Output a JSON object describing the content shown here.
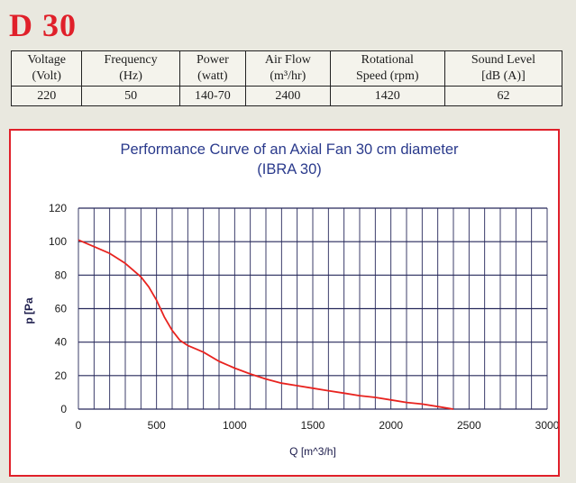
{
  "model": "D 30",
  "spec_table": {
    "headers": [
      {
        "line1": "Voltage",
        "line2": "(Volt)"
      },
      {
        "line1": "Frequency",
        "line2": "(Hz)"
      },
      {
        "line1": "Power",
        "line2": "(watt)"
      },
      {
        "line1": "Air Flow",
        "line2": "(m³/hr)"
      },
      {
        "line1": "Rotational",
        "line2": "Speed (rpm)"
      },
      {
        "line1": "Sound Level",
        "line2": "[dB (A)]"
      }
    ],
    "values": [
      "220",
      "50",
      "140-70",
      "2400",
      "1420",
      "62"
    ]
  },
  "chart_data": {
    "type": "line",
    "title": "Performance Curve of an Axial Fan 30 cm diameter",
    "subtitle": "(IBRA 30)",
    "xlabel": "Q [m^3/h]",
    "ylabel": "p [Pa",
    "xlim": [
      0,
      3000
    ],
    "ylim": [
      0,
      120
    ],
    "xticks": [
      "0",
      "500",
      "1000",
      "1500",
      "2000",
      "2500",
      "3000"
    ],
    "yticks": [
      "0",
      "20",
      "40",
      "60",
      "80",
      "100",
      "120"
    ],
    "grid": true,
    "series": [
      {
        "color": "#e8231f",
        "x": [
          0,
          100,
          200,
          300,
          400,
          450,
          500,
          550,
          600,
          650,
          700,
          750,
          800,
          900,
          1000,
          1100,
          1200,
          1300,
          1400,
          1500,
          1600,
          1700,
          1800,
          1900,
          2000,
          2100,
          2200,
          2300,
          2400
        ],
        "y": [
          101,
          97,
          93,
          87,
          79,
          73,
          65,
          55,
          47,
          41,
          38,
          36,
          34,
          28.5,
          24.5,
          21,
          18,
          15.5,
          14,
          12.5,
          11,
          9.5,
          8,
          7,
          5.5,
          4,
          3,
          1.5,
          0
        ]
      }
    ]
  }
}
